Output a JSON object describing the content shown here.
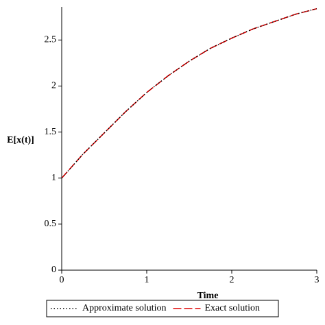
{
  "chart_data": {
    "type": "line",
    "x_label": "Time",
    "y_label": "E[x(t)]",
    "x": [
      0,
      0.25,
      0.5,
      0.75,
      1,
      1.25,
      1.5,
      1.75,
      2,
      2.25,
      2.5,
      2.75,
      3
    ],
    "series": [
      {
        "name": "Approximate solution",
        "color": "#000000",
        "dash": "dotted",
        "values": [
          1,
          1.26,
          1.49,
          1.72,
          1.93,
          2.11,
          2.27,
          2.41,
          2.52,
          2.62,
          2.7,
          2.78,
          2.84
        ]
      },
      {
        "name": "Exact solution",
        "color": "#e00000",
        "dash": "dashed",
        "values": [
          1,
          1.26,
          1.49,
          1.72,
          1.93,
          2.11,
          2.27,
          2.41,
          2.52,
          2.62,
          2.7,
          2.78,
          2.84
        ]
      }
    ],
    "xlim": [
      0,
      3
    ],
    "ylim": [
      0,
      2.86
    ],
    "xticks": [
      0,
      1,
      2,
      3
    ],
    "yticks": [
      0,
      0.5,
      1,
      1.5,
      2,
      2.5
    ],
    "legend": "bottom"
  }
}
